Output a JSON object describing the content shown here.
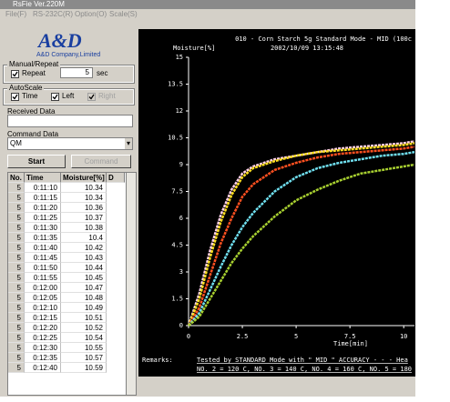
{
  "window": {
    "title": "RsFie Ver.220M"
  },
  "menu": [
    "File(F)",
    "RS-232C(R)",
    "Option(O)",
    "Scale(S)"
  ],
  "logo": {
    "brand": "A&D",
    "company": "A&D Company,Limited"
  },
  "manual_repeat": {
    "title": "Manual/Repeat",
    "repeat_label": "Repeat",
    "repeat_checked": true,
    "interval": "5",
    "unit": "sec"
  },
  "autoscale": {
    "title": "AutoScale",
    "time": "Time",
    "time_checked": true,
    "left": "Left",
    "left_checked": true,
    "right": "Right",
    "right_checked": true
  },
  "received_data": {
    "label": "Received Data"
  },
  "command_data": {
    "label": "Command Data",
    "value": "QM"
  },
  "buttons": {
    "start": "Start",
    "command": "Command"
  },
  "table": {
    "columns": [
      "No.",
      "Time",
      "Moisture[%]",
      "D"
    ],
    "rows": [
      [
        "5",
        "0:11:10",
        "10.34"
      ],
      [
        "5",
        "0:11:15",
        "10.34"
      ],
      [
        "5",
        "0:11:20",
        "10.36"
      ],
      [
        "5",
        "0:11:25",
        "10.37"
      ],
      [
        "5",
        "0:11:30",
        "10.38"
      ],
      [
        "5",
        "0:11:35",
        "10.4"
      ],
      [
        "5",
        "0:11:40",
        "10.42"
      ],
      [
        "5",
        "0:11:45",
        "10.43"
      ],
      [
        "5",
        "0:11:50",
        "10.44"
      ],
      [
        "5",
        "0:11:55",
        "10.45"
      ],
      [
        "5",
        "0:12:00",
        "10.47"
      ],
      [
        "5",
        "0:12:05",
        "10.48"
      ],
      [
        "5",
        "0:12:10",
        "10.49"
      ],
      [
        "5",
        "0:12:15",
        "10.51"
      ],
      [
        "5",
        "0:12:20",
        "10.52"
      ],
      [
        "5",
        "0:12:25",
        "10.54"
      ],
      [
        "5",
        "0:12:30",
        "10.55"
      ],
      [
        "5",
        "0:12:35",
        "10.57"
      ],
      [
        "5",
        "0:12:40",
        "10.59"
      ]
    ]
  },
  "chart_data": {
    "type": "line",
    "title": "010 - Corn Starch 5g Standard Mode - MID (100c",
    "subtitle": "2002/10/09 13:15:48",
    "y_label": "Moisture[%]",
    "x_label": "Time[min]",
    "x": [
      0,
      0.5,
      1,
      1.5,
      2,
      2.5,
      3,
      4,
      5,
      6,
      7,
      8,
      9,
      10,
      10.5
    ],
    "series": [
      {
        "color": "#ffd0e8",
        "values": [
          0,
          1.8,
          4.2,
          6.2,
          7.6,
          8.5,
          8.9,
          9.3,
          9.5,
          9.7,
          9.9,
          10.0,
          10.1,
          10.2,
          10.3
        ]
      },
      {
        "color": "#ffe020",
        "values": [
          0,
          1.5,
          3.8,
          5.8,
          7.3,
          8.3,
          8.8,
          9.2,
          9.5,
          9.7,
          9.8,
          9.9,
          10.0,
          10.1,
          10.2
        ]
      },
      {
        "color": "#ff5020",
        "values": [
          0,
          1.0,
          2.8,
          4.6,
          6.0,
          7.2,
          7.9,
          8.7,
          9.1,
          9.4,
          9.6,
          9.7,
          9.8,
          9.9,
          10.0
        ]
      },
      {
        "color": "#70e0f0",
        "values": [
          0,
          0.7,
          2.0,
          3.3,
          4.5,
          5.5,
          6.3,
          7.5,
          8.3,
          8.8,
          9.1,
          9.3,
          9.5,
          9.6,
          9.7
        ]
      },
      {
        "color": "#a8d030",
        "values": [
          0,
          0.5,
          1.5,
          2.5,
          3.5,
          4.3,
          5.0,
          6.1,
          7.0,
          7.6,
          8.1,
          8.5,
          8.7,
          8.9,
          9.0
        ]
      }
    ],
    "xlim": [
      0,
      10.5
    ],
    "ylim": [
      0,
      15
    ],
    "xticks": [
      0,
      2.5,
      5,
      7.5,
      10
    ],
    "yticks": [
      0,
      1.5,
      3,
      4.5,
      6,
      7.5,
      9,
      10.5,
      12,
      13.5,
      15
    ]
  },
  "remarks": {
    "label": "Remarks:",
    "line1": "Tested by STANDARD Mode  with \" MID \" ACCURACY -  -  - Hea",
    "line2": "NO. 2 = 120 C,  NO. 3 = 140 C,  NO. 4 = 160 C,  NO. 5 = 180"
  }
}
